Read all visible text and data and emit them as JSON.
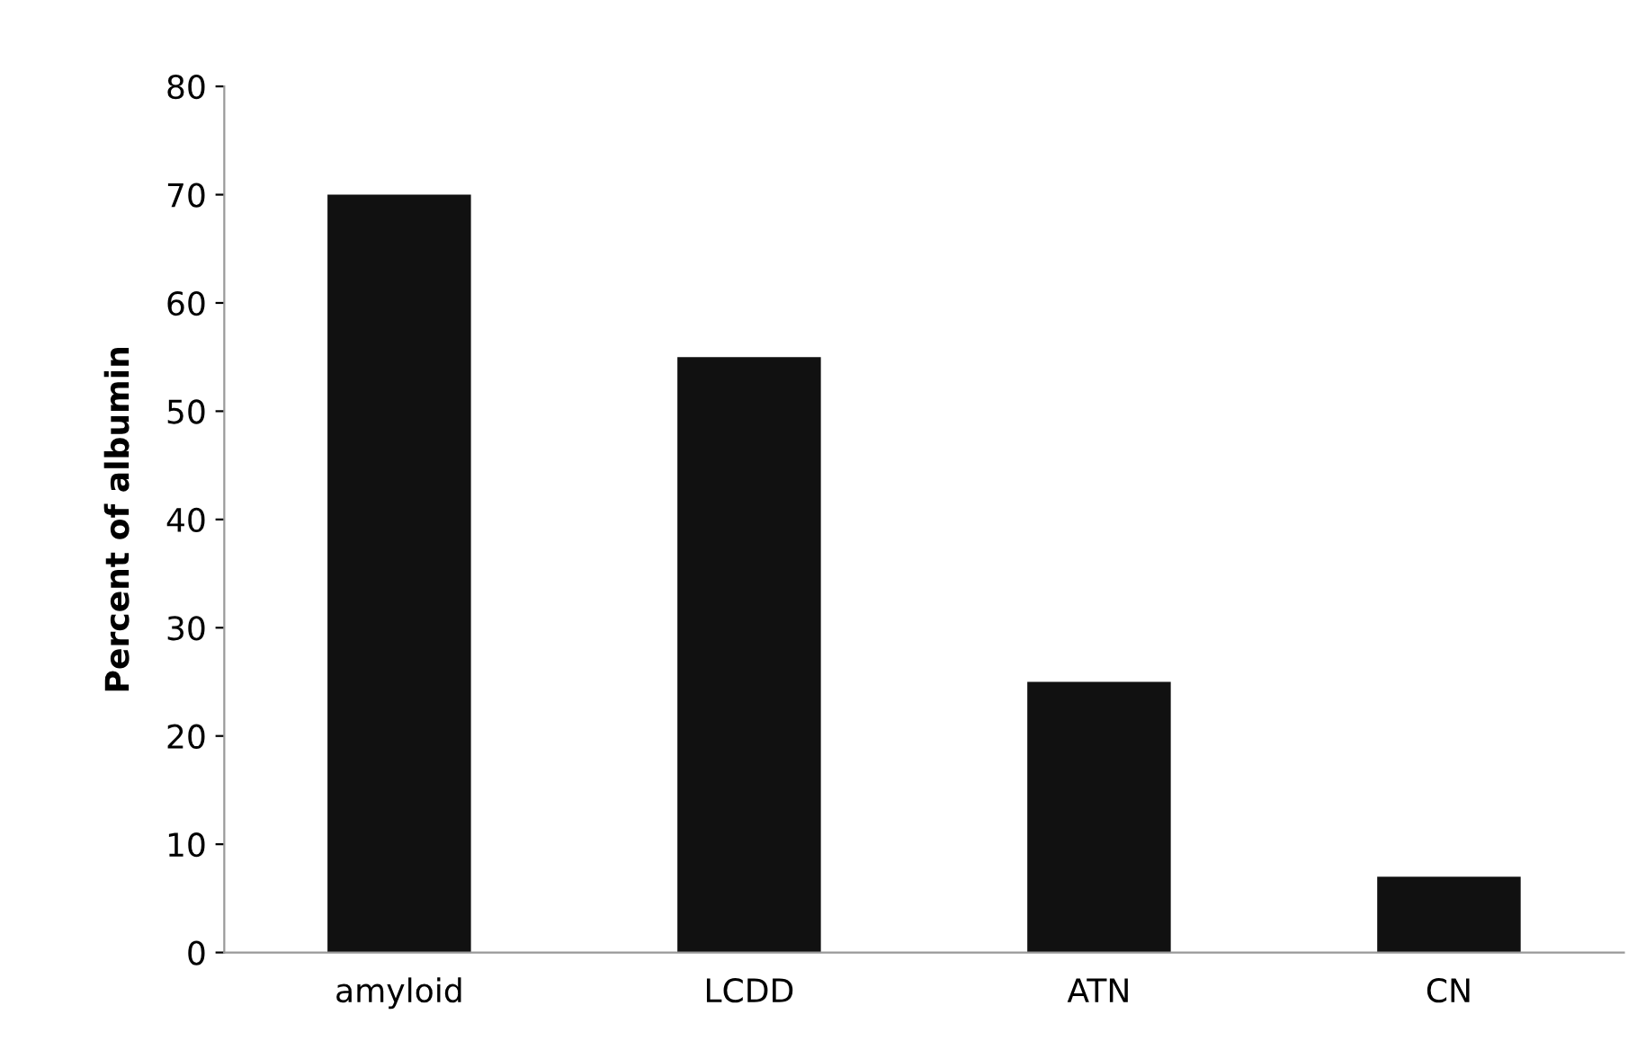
{
  "chart_data": {
    "type": "bar",
    "ylabel": "Percent of albumin",
    "categories": [
      "amyloid",
      "LCDD",
      "ATN",
      "CN"
    ],
    "values": [
      70,
      55,
      25,
      7
    ],
    "color": "#111111",
    "ylim": [
      0,
      80
    ],
    "yticks": [
      0,
      10,
      20,
      30,
      40,
      50,
      60,
      70,
      80
    ],
    "grid": false,
    "legend": false
  }
}
